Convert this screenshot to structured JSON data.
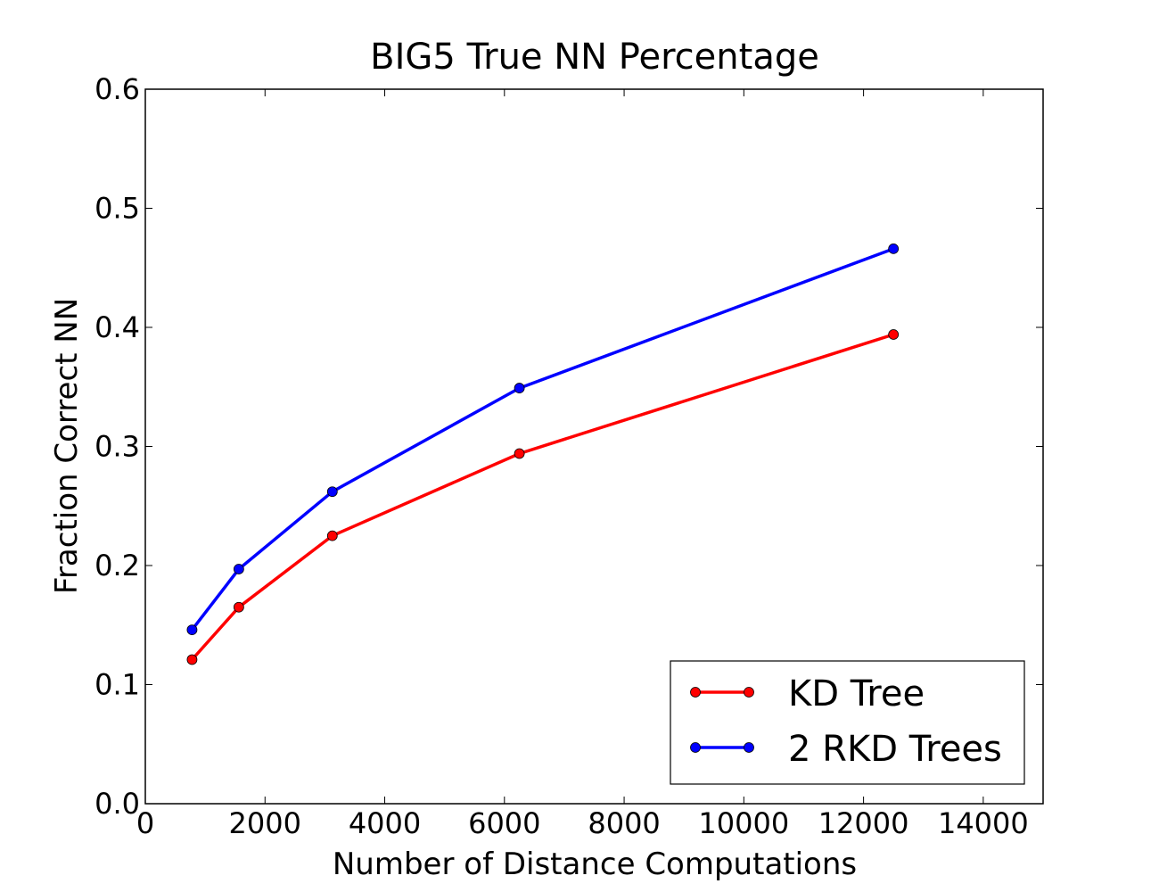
{
  "chart_data": {
    "type": "line",
    "title": "BIG5 True NN Percentage",
    "xlabel": "Number of Distance Computations",
    "ylabel": "Fraction Correct NN",
    "xlim": [
      0,
      15000
    ],
    "ylim": [
      0.0,
      0.6
    ],
    "xticks": [
      0,
      2000,
      4000,
      6000,
      8000,
      10000,
      12000,
      14000
    ],
    "xtick_labels": [
      "0",
      "2000",
      "4000",
      "6000",
      "8000",
      "10000",
      "12000",
      "14000"
    ],
    "yticks": [
      0.0,
      0.1,
      0.2,
      0.3,
      0.4,
      0.5,
      0.6
    ],
    "ytick_labels": [
      "0.0",
      "0.1",
      "0.2",
      "0.3",
      "0.4",
      "0.5",
      "0.6"
    ],
    "grid": false,
    "legend_position": "bottom-right",
    "series": [
      {
        "name": "KD Tree",
        "color": "#ff0000",
        "x": [
          781,
          1562,
          3125,
          6250,
          12500
        ],
        "y": [
          0.121,
          0.165,
          0.225,
          0.294,
          0.394
        ]
      },
      {
        "name": "2 RKD Trees",
        "color": "#0000ff",
        "x": [
          781,
          1562,
          3125,
          6250,
          12500
        ],
        "y": [
          0.146,
          0.197,
          0.262,
          0.349,
          0.466
        ]
      }
    ]
  }
}
